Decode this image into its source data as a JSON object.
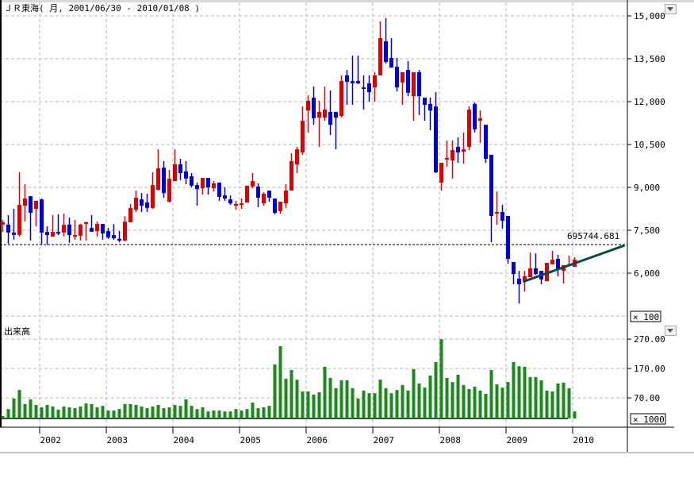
{
  "title": "ＪＲ東海( 月, 2001/06/30 - 2010/01/08 )",
  "colors": {
    "up": "#e00000",
    "down": "#0000dd",
    "volume": "#1a8a1a",
    "trendline": "#0b4a44",
    "grid": "#b8b8b8"
  },
  "chart_data": [
    {
      "type": "candlestick",
      "title": "ＪＲ東海( 月, 2001/06/30 - 2010/01/08 )",
      "y_ticks": [
        {
          "label": "15,000",
          "value": 15000
        },
        {
          "label": "13,500",
          "value": 13500
        },
        {
          "label": "12,000",
          "value": 12000
        },
        {
          "label": "10,500",
          "value": 10500
        },
        {
          "label": "9,000",
          "value": 9000
        },
        {
          "label": "7,500",
          "value": 7500
        },
        {
          "label": "6,000",
          "value": 6000
        }
      ],
      "ylim": [
        4500,
        15500
      ],
      "y_scale_note": "× 100",
      "grid": true,
      "horizontal_line": {
        "value": 7000,
        "label": "695744.681"
      },
      "trendline": [
        {
          "x": "2009-04",
          "y": 5700
        },
        {
          "x": "2010-10",
          "y": 6970
        }
      ],
      "columns": [
        "month",
        "open",
        "high",
        "low",
        "close",
        "volume"
      ],
      "rows": [
        [
          "2001-06",
          7700,
          7860,
          7440,
          7780,
          8
        ],
        [
          "2001-07",
          7700,
          8030,
          7030,
          7420,
          32
        ],
        [
          "2001-08",
          7420,
          8250,
          7170,
          7340,
          68
        ],
        [
          "2001-09",
          7340,
          9530,
          7280,
          8390,
          97
        ],
        [
          "2001-10",
          8360,
          9110,
          7810,
          8610,
          49
        ],
        [
          "2001-11",
          8690,
          8700,
          7140,
          8110,
          65
        ],
        [
          "2001-12",
          8250,
          8540,
          7640,
          8530,
          46
        ],
        [
          "2002-01",
          8580,
          8610,
          7000,
          7420,
          38
        ],
        [
          "2002-02",
          7440,
          7640,
          7000,
          7330,
          46
        ],
        [
          "2002-03",
          7280,
          8030,
          7280,
          7440,
          41
        ],
        [
          "2002-04",
          7440,
          8060,
          7330,
          7400,
          30
        ],
        [
          "2002-05",
          7420,
          8080,
          7280,
          7690,
          41
        ],
        [
          "2002-06",
          7700,
          7940,
          7060,
          7330,
          38
        ],
        [
          "2002-07",
          7280,
          7860,
          7170,
          7330,
          35
        ],
        [
          "2002-08",
          7310,
          7720,
          7140,
          7700,
          41
        ],
        [
          "2002-09",
          7720,
          7800,
          7140,
          7780,
          51
        ],
        [
          "2002-10",
          7580,
          8030,
          7440,
          7450,
          49
        ],
        [
          "2002-11",
          7470,
          7800,
          7280,
          7720,
          38
        ],
        [
          "2002-12",
          7720,
          7720,
          7170,
          7390,
          43
        ],
        [
          "2003-01",
          7470,
          7580,
          7200,
          7250,
          27
        ],
        [
          "2003-02",
          7330,
          7720,
          7170,
          7220,
          27
        ],
        [
          "2003-03",
          7200,
          7470,
          7080,
          7140,
          32
        ],
        [
          "2003-04",
          7140,
          7990,
          7110,
          7800,
          49
        ],
        [
          "2003-05",
          7780,
          8420,
          7780,
          8280,
          49
        ],
        [
          "2003-06",
          8220,
          8890,
          8140,
          8640,
          46
        ],
        [
          "2003-07",
          8580,
          8800,
          8140,
          8360,
          41
        ],
        [
          "2003-08",
          8470,
          8780,
          8140,
          8280,
          35
        ],
        [
          "2003-09",
          8280,
          9530,
          8250,
          9080,
          41
        ],
        [
          "2003-10",
          8920,
          10330,
          8890,
          9670,
          46
        ],
        [
          "2003-11",
          9690,
          9920,
          8640,
          8800,
          35
        ],
        [
          "2003-12",
          8500,
          9610,
          8470,
          9300,
          38
        ],
        [
          "2004-01",
          9220,
          10330,
          9220,
          9810,
          46
        ],
        [
          "2004-02",
          9810,
          10000,
          9250,
          9500,
          43
        ],
        [
          "2004-03",
          9560,
          9920,
          9110,
          9310,
          65
        ],
        [
          "2004-04",
          9390,
          9500,
          9000,
          9060,
          43
        ],
        [
          "2004-05",
          9080,
          9170,
          8360,
          8940,
          32
        ],
        [
          "2004-06",
          8970,
          9330,
          8750,
          9330,
          38
        ],
        [
          "2004-07",
          9330,
          9330,
          8750,
          9000,
          24
        ],
        [
          "2004-08",
          8970,
          9220,
          8860,
          9140,
          27
        ],
        [
          "2004-09",
          9170,
          9170,
          8530,
          8670,
          27
        ],
        [
          "2004-10",
          8720,
          9000,
          8530,
          8610,
          24
        ],
        [
          "2004-11",
          8580,
          8720,
          8390,
          8440,
          24
        ],
        [
          "2004-12",
          8360,
          8530,
          8220,
          8420,
          32
        ],
        [
          "2005-01",
          8390,
          8610,
          8250,
          8440,
          27
        ],
        [
          "2005-02",
          8470,
          9060,
          8470,
          9060,
          32
        ],
        [
          "2005-03",
          9030,
          9500,
          8970,
          9220,
          54
        ],
        [
          "2005-04",
          9030,
          9140,
          8310,
          8640,
          35
        ],
        [
          "2005-05",
          8440,
          8830,
          8360,
          8780,
          38
        ],
        [
          "2005-06",
          8890,
          8890,
          8500,
          8640,
          43
        ],
        [
          "2005-07",
          8610,
          8610,
          8060,
          8110,
          184
        ],
        [
          "2005-08",
          8170,
          8500,
          8080,
          8500,
          246
        ],
        [
          "2005-09",
          8440,
          9110,
          8280,
          8890,
          135
        ],
        [
          "2005-10",
          8890,
          10190,
          8890,
          9920,
          165
        ],
        [
          "2005-11",
          9800,
          10420,
          9500,
          10330,
          132
        ],
        [
          "2005-12",
          10220,
          11830,
          10140,
          11330,
          92
        ],
        [
          "2006-01",
          11690,
          12220,
          10920,
          12030,
          92
        ],
        [
          "2006-02",
          12140,
          12530,
          11190,
          11420,
          81
        ],
        [
          "2006-03",
          11440,
          12030,
          10420,
          11640,
          89
        ],
        [
          "2006-04",
          11440,
          12530,
          11330,
          11720,
          176
        ],
        [
          "2006-05",
          11640,
          12390,
          10830,
          11190,
          138
        ],
        [
          "2006-06",
          11640,
          11640,
          10330,
          11440,
          103
        ],
        [
          "2006-07",
          11500,
          12920,
          11440,
          12720,
          130
        ],
        [
          "2006-08",
          12920,
          13110,
          11890,
          12690,
          130
        ],
        [
          "2006-09",
          12720,
          13610,
          11890,
          12640,
          103
        ],
        [
          "2006-10",
          12720,
          13610,
          12610,
          12640,
          68
        ],
        [
          "2006-11",
          12500,
          12920,
          11720,
          12490,
          95
        ],
        [
          "2006-12",
          12640,
          12920,
          12000,
          12330,
          86
        ],
        [
          "2007-01",
          12500,
          13030,
          12000,
          12920,
          86
        ],
        [
          "2007-02",
          12920,
          14810,
          12920,
          14220,
          132
        ],
        [
          "2007-03",
          14110,
          14920,
          13330,
          13390,
          103
        ],
        [
          "2007-04",
          13530,
          14220,
          13190,
          13190,
          86
        ],
        [
          "2007-05",
          13220,
          13530,
          12360,
          12500,
          97
        ],
        [
          "2007-06",
          12670,
          13030,
          11890,
          13030,
          114
        ],
        [
          "2007-07",
          13110,
          13420,
          12190,
          12310,
          95
        ],
        [
          "2007-08",
          12190,
          13030,
          11330,
          13030,
          168
        ],
        [
          "2007-09",
          13030,
          13110,
          11530,
          12190,
          119
        ],
        [
          "2007-10",
          12140,
          12140,
          11330,
          11890,
          105
        ],
        [
          "2007-11",
          11920,
          12140,
          11000,
          11690,
          146
        ],
        [
          "2007-12",
          11830,
          12330,
          9500,
          9530,
          192
        ],
        [
          "2008-01",
          9170,
          9860,
          8890,
          9860,
          270
        ],
        [
          "2008-02",
          10000,
          10640,
          9720,
          10030,
          138
        ],
        [
          "2008-03",
          9940,
          10640,
          9310,
          10310,
          124
        ],
        [
          "2008-04",
          10420,
          10750,
          9860,
          10220,
          149
        ],
        [
          "2008-05",
          10250,
          10920,
          9830,
          10330,
          114
        ],
        [
          "2008-06",
          10420,
          11830,
          10310,
          11720,
          100
        ],
        [
          "2008-07",
          11920,
          11970,
          10920,
          11030,
          108
        ],
        [
          "2008-08",
          11330,
          11690,
          10560,
          11420,
          95
        ],
        [
          "2008-09",
          11190,
          11190,
          9860,
          10000,
          84
        ],
        [
          "2008-10",
          10140,
          10140,
          7080,
          8000,
          165
        ],
        [
          "2008-11",
          8140,
          8860,
          7690,
          8140,
          116
        ],
        [
          "2008-12",
          8140,
          8390,
          7560,
          7830,
          105
        ],
        [
          "2009-01",
          8000,
          8000,
          6330,
          6500,
          124
        ],
        [
          "2009-02",
          6390,
          6390,
          5610,
          5970,
          192
        ],
        [
          "2009-03",
          5810,
          6080,
          4940,
          5610,
          178
        ],
        [
          "2009-04",
          5720,
          6080,
          5360,
          5890,
          176
        ],
        [
          "2009-05",
          5860,
          6720,
          5860,
          6170,
          141
        ],
        [
          "2009-06",
          6170,
          6690,
          5940,
          5970,
          141
        ],
        [
          "2009-07",
          6080,
          6080,
          5610,
          5780,
          130
        ],
        [
          "2009-08",
          5720,
          6360,
          5720,
          6360,
          95
        ],
        [
          "2009-09",
          6310,
          6780,
          6310,
          6470,
          92
        ],
        [
          "2009-10",
          6500,
          6640,
          5890,
          6110,
          119
        ],
        [
          "2009-11",
          6080,
          6280,
          5640,
          6280,
          122
        ],
        [
          "2009-12",
          6250,
          6610,
          6250,
          6310,
          103
        ],
        [
          "2010-01",
          6220,
          6560,
          6220,
          6470,
          24
        ]
      ]
    },
    {
      "type": "bar",
      "title": "出来高",
      "y_ticks": [
        {
          "label": "270.00",
          "value": 270
        },
        {
          "label": "170.00",
          "value": 170
        },
        {
          "label": "70.00",
          "value": 70
        }
      ],
      "y_scale_note": "× 1000",
      "series_source": "volume column of candlestick rows"
    }
  ],
  "x_ticks": [
    {
      "label": "2002",
      "month": "2002-01"
    },
    {
      "label": "2003",
      "month": "2003-01"
    },
    {
      "label": "2004",
      "month": "2004-01"
    },
    {
      "label": "2005",
      "month": "2005-01"
    },
    {
      "label": "2006",
      "month": "2006-01"
    },
    {
      "label": "2007",
      "month": "2007-01"
    },
    {
      "label": "2008",
      "month": "2008-01"
    },
    {
      "label": "2009",
      "month": "2009-01"
    },
    {
      "label": "2010",
      "month": "2010-01"
    }
  ]
}
